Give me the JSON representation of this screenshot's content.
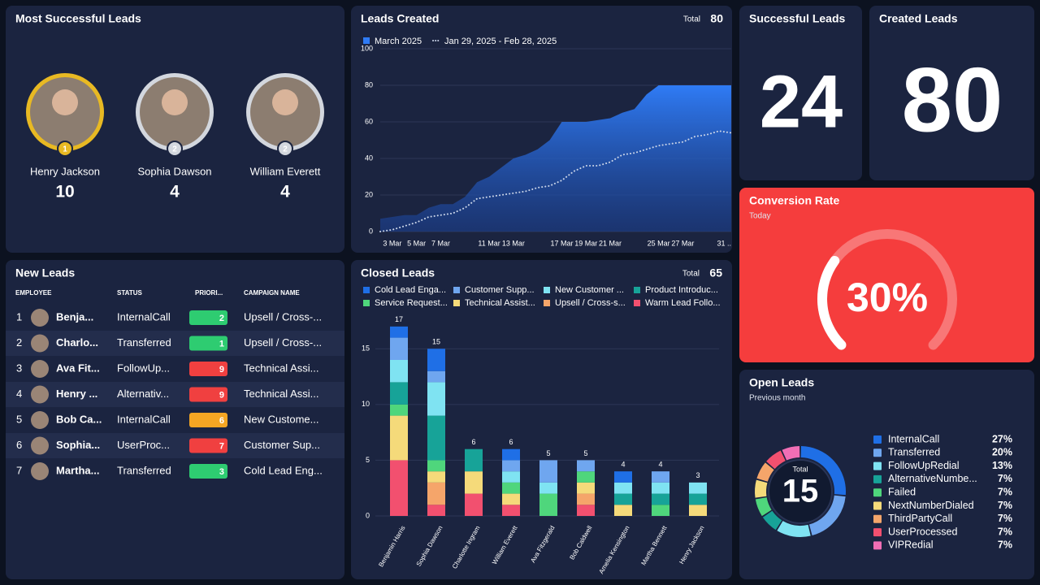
{
  "most_successful": {
    "title": "Most Successful Leads",
    "people": [
      {
        "name": "Henry Jackson",
        "rank": 1,
        "count": 10,
        "ring_color": "#e8b923"
      },
      {
        "name": "Sophia Dawson",
        "rank": 2,
        "count": 4,
        "ring_color": "#d3d7de"
      },
      {
        "name": "William Everett",
        "rank": 2,
        "count": 4,
        "ring_color": "#d3d7de"
      }
    ]
  },
  "leads_created": {
    "title": "Leads Created",
    "total_label": "Total",
    "total": 80,
    "chart": {
      "type": "area",
      "categories": [
        null,
        "3 Mar",
        null,
        "5 Mar",
        null,
        "7 Mar",
        null,
        null,
        null,
        "11 Mar",
        null,
        "13 Mar",
        null,
        null,
        null,
        "17 Mar",
        null,
        "19 Mar",
        null,
        "21 Mar",
        null,
        null,
        null,
        "25 Mar",
        null,
        "27 Mar",
        null,
        null,
        null,
        "31 .."
      ],
      "series": [
        {
          "name": "March 2025",
          "color": "#2f7bf5",
          "line_style": "filled",
          "values": [
            7,
            8,
            9,
            9,
            13,
            15,
            15,
            19,
            27,
            30,
            35,
            40,
            42,
            45,
            50,
            60,
            60,
            60,
            61,
            62,
            65,
            67,
            75,
            80,
            80,
            80,
            80,
            80,
            80,
            80
          ]
        },
        {
          "name": "Jan 29, 2025 - Feb 28, 2025",
          "color": "#c9d4e8",
          "line_style": "dotted",
          "values": [
            0,
            1,
            3,
            5,
            8,
            9,
            10,
            13,
            18,
            19,
            20,
            21,
            22,
            24,
            25,
            28,
            33,
            36,
            36,
            38,
            42,
            43,
            45,
            47,
            48,
            49,
            52,
            53,
            55,
            54
          ]
        }
      ],
      "ylim": [
        0,
        100
      ],
      "yticks": [
        0,
        20,
        40,
        60,
        80,
        100
      ],
      "grid": true
    }
  },
  "successful_leads": {
    "title": "Successful Leads",
    "value": 24,
    "color": "#2ecc71"
  },
  "created_leads": {
    "title": "Created Leads",
    "value": 80,
    "color": "#ffffff"
  },
  "conversion_rate": {
    "title": "Conversion Rate",
    "subtitle": "Today",
    "value": 30,
    "value_label": "30%",
    "range": [
      0,
      100
    ]
  },
  "new_leads": {
    "title": "New Leads",
    "columns": [
      "EMPLOYEE",
      "STATUS",
      "PRIORI...",
      "CAMPAIGN NAME"
    ],
    "rows": [
      [
        1,
        "Benja...",
        "InternalCall",
        2,
        "Upsell / Cross-..."
      ],
      [
        2,
        "Charlo...",
        "Transferred",
        1,
        "Upsell / Cross-..."
      ],
      [
        3,
        "Ava Fit...",
        "FollowUp...",
        9,
        "Technical Assi..."
      ],
      [
        4,
        "Henry ...",
        "Alternativ...",
        9,
        "Technical Assi..."
      ],
      [
        5,
        "Bob Ca...",
        "InternalCall",
        6,
        "New Custome..."
      ],
      [
        6,
        "Sophia...",
        "UserProc...",
        7,
        "Customer Sup..."
      ],
      [
        7,
        "Martha...",
        "Transferred",
        3,
        "Cold Lead Eng..."
      ]
    ],
    "priority_colors": [
      "#2ecc71",
      "#2ecc71",
      "#f04040",
      "#f04040",
      "#f5a623",
      "#f04040",
      "#2ecc71"
    ]
  },
  "closed_leads": {
    "title": "Closed Leads",
    "total_label": "Total",
    "total": 65,
    "chart": {
      "type": "stacked_bar",
      "categories": [
        "Benjamin Harris",
        "Sophia Dawson",
        "Charlotte Ingram",
        "William Everett",
        "Ava Fitzgerald",
        "Bob Caldwell",
        "Amelia Kensington",
        "Martha Bennett",
        "Henry Jackson"
      ],
      "series": [
        {
          "name": "Cold Lead Enga...",
          "color": "#1f6fe6",
          "values": [
            1,
            2,
            0,
            1,
            0,
            0,
            1,
            0,
            0
          ]
        },
        {
          "name": "Customer Supp...",
          "color": "#6fa6ef",
          "values": [
            2,
            1,
            0,
            1,
            2,
            1,
            0,
            1,
            0
          ]
        },
        {
          "name": "New Customer ...",
          "color": "#7fe3f2",
          "values": [
            2,
            3,
            0,
            1,
            1,
            0,
            1,
            1,
            1
          ]
        },
        {
          "name": "Product Introduc...",
          "color": "#17a398",
          "values": [
            2,
            4,
            2,
            0,
            0,
            0,
            1,
            1,
            1
          ]
        },
        {
          "name": "Service Request...",
          "color": "#4fd67c",
          "values": [
            1,
            1,
            0,
            1,
            2,
            1,
            0,
            1,
            0
          ]
        },
        {
          "name": "Technical Assist...",
          "color": "#f5da7a",
          "values": [
            4,
            1,
            2,
            1,
            0,
            1,
            1,
            0,
            1
          ]
        },
        {
          "name": "Upsell / Cross-s...",
          "color": "#f5a56a",
          "values": [
            0,
            2,
            0,
            0,
            0,
            1,
            0,
            0,
            0
          ]
        },
        {
          "name": "Warm Lead Follo...",
          "color": "#f2506f",
          "values": [
            5,
            1,
            2,
            1,
            0,
            1,
            0,
            0,
            0
          ]
        }
      ],
      "totals": [
        17,
        15,
        6,
        6,
        5,
        5,
        4,
        4,
        3
      ],
      "ylim": [
        0,
        17.5
      ],
      "yticks": [
        0,
        5,
        10,
        15
      ],
      "grid": true
    }
  },
  "open_leads": {
    "title": "Open Leads",
    "subtitle": "Previous month",
    "total_label": "Total",
    "total": 15,
    "chart": {
      "type": "donut",
      "categories": [
        "InternalCall",
        "Transferred",
        "FollowUpRedial",
        "AlternativeNumbe...",
        "Failed",
        "NextNumberDialed",
        "ThirdPartyCall",
        "UserProcessed",
        "VIPRedial"
      ],
      "values": [
        27,
        20,
        13,
        7,
        7,
        7,
        7,
        7,
        7
      ],
      "value_labels": [
        "27%",
        "20%",
        "13%",
        "7%",
        "7%",
        "7%",
        "7%",
        "7%",
        "7%"
      ],
      "colors": [
        "#1f6fe6",
        "#6fa6ef",
        "#7fe3f2",
        "#17a398",
        "#4fd67c",
        "#f5da7a",
        "#f5a56a",
        "#f2506f",
        "#f06eb5"
      ]
    }
  }
}
